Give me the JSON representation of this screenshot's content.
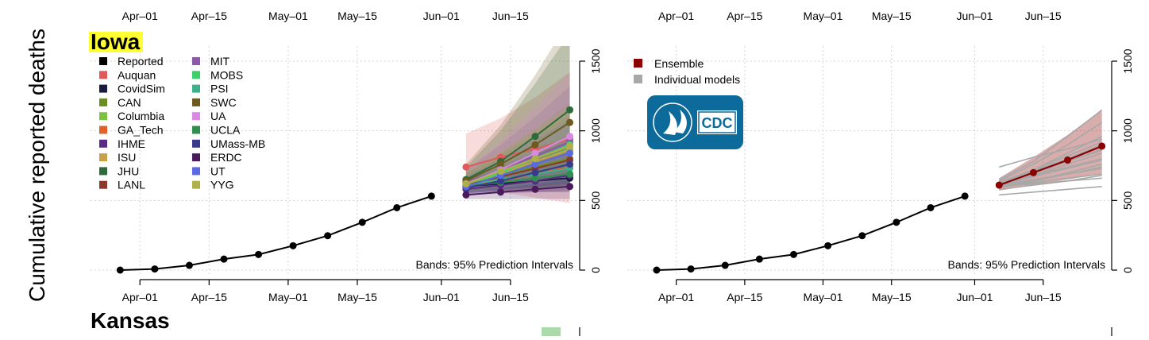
{
  "figure": {
    "ylabel": "Cumulative reported deaths",
    "states": [
      "Iowa",
      "Kansas"
    ],
    "band_note": "Bands: 95% Prediction Intervals"
  },
  "x_tick_labels": [
    "Apr–01",
    "Apr–15",
    "May–01",
    "May–15",
    "Jun–01",
    "Jun–15"
  ],
  "logo": {
    "text": "CDC",
    "bg_color": "#0d6b9c"
  },
  "chart_data": [
    {
      "type": "line",
      "panel": "iowa-individual",
      "title": "Iowa",
      "ylabel": "Cumulative reported deaths",
      "x_axis": "date",
      "xlim": [
        "2020-03-22",
        "2020-06-29"
      ],
      "ylim": [
        0,
        1500
      ],
      "y_ticks": [
        0,
        500,
        1000,
        1500
      ],
      "y_axis_side": "right",
      "grid": true,
      "legend_position": "top-left",
      "annotation": "Bands: 95% Prediction Intervals",
      "reported": {
        "name": "Reported",
        "color": "#000000",
        "x": [
          "2020-03-28",
          "2020-04-04",
          "2020-04-11",
          "2020-04-18",
          "2020-04-25",
          "2020-05-02",
          "2020-05-09",
          "2020-05-16",
          "2020-05-23",
          "2020-05-30"
        ],
        "y": [
          0,
          8,
          34,
          79,
          112,
          175,
          247,
          343,
          448,
          531
        ]
      },
      "forecast_x": [
        "2020-06-06",
        "2020-06-13",
        "2020-06-20",
        "2020-06-27"
      ],
      "series": [
        {
          "name": "Auquan",
          "color": "#e05a5a",
          "values": [
            740,
            810,
            870,
            940
          ],
          "lower": [
            600,
            560,
            520,
            480
          ],
          "upper": [
            980,
            1090,
            1240,
            1420
          ]
        },
        {
          "name": "CovidSim",
          "color": "#1a1a40",
          "values": [
            600,
            620,
            640,
            660
          ],
          "lower": [
            560,
            560,
            560,
            560
          ],
          "upper": [
            640,
            680,
            720,
            760
          ]
        },
        {
          "name": "CAN",
          "color": "#6b8e23",
          "values": [
            620,
            680,
            740,
            800
          ],
          "lower": [
            560,
            580,
            600,
            620
          ],
          "upper": [
            690,
            780,
            880,
            980
          ]
        },
        {
          "name": "Columbia",
          "color": "#7cc242",
          "values": [
            610,
            690,
            780,
            870
          ],
          "lower": [
            550,
            570,
            590,
            610
          ],
          "upper": [
            690,
            840,
            1010,
            1200
          ]
        },
        {
          "name": "GA_Tech",
          "color": "#e0622a",
          "values": [
            600,
            640,
            690,
            740
          ],
          "lower": [
            560,
            580,
            600,
            620
          ],
          "upper": [
            650,
            720,
            800,
            880
          ]
        },
        {
          "name": "IHME",
          "color": "#5b2a86",
          "values": [
            580,
            610,
            640,
            680
          ],
          "lower": [
            540,
            550,
            560,
            570
          ],
          "upper": [
            630,
            690,
            760,
            830
          ]
        },
        {
          "name": "ISU",
          "color": "#c9a04a",
          "values": [
            630,
            700,
            780,
            860
          ],
          "lower": [
            570,
            600,
            630,
            660
          ],
          "upper": [
            700,
            830,
            970,
            1110
          ]
        },
        {
          "name": "JHU",
          "color": "#2e6b3a",
          "values": [
            650,
            780,
            960,
            1150
          ],
          "lower": [
            580,
            640,
            700,
            760
          ],
          "upper": [
            740,
            1000,
            1340,
            1700
          ]
        },
        {
          "name": "LANL",
          "color": "#8b3a2a",
          "values": [
            610,
            670,
            730,
            790
          ],
          "lower": [
            570,
            600,
            630,
            660
          ],
          "upper": [
            660,
            750,
            850,
            950
          ]
        },
        {
          "name": "MIT",
          "color": "#8a5aa8",
          "values": [
            630,
            720,
            820,
            920
          ],
          "lower": [
            560,
            580,
            600,
            620
          ],
          "upper": [
            720,
            900,
            1100,
            1320
          ]
        },
        {
          "name": "MOBS",
          "color": "#3ecf6a",
          "values": [
            620,
            700,
            800,
            900
          ],
          "lower": [
            560,
            600,
            640,
            680
          ],
          "upper": [
            700,
            830,
            980,
            1140
          ]
        },
        {
          "name": "PSI",
          "color": "#3cb08a",
          "values": [
            610,
            650,
            690,
            730
          ],
          "lower": [
            570,
            590,
            610,
            630
          ],
          "upper": [
            660,
            730,
            800,
            870
          ]
        },
        {
          "name": "SWC",
          "color": "#6e5a1e",
          "values": [
            640,
            760,
            900,
            1060
          ],
          "lower": [
            560,
            600,
            640,
            680
          ],
          "upper": [
            760,
            1040,
            1400,
            1800
          ]
        },
        {
          "name": "UA",
          "color": "#d98ae0",
          "values": [
            620,
            720,
            840,
            960
          ],
          "lower": [
            550,
            570,
            590,
            610
          ],
          "upper": [
            720,
            930,
            1170,
            1420
          ]
        },
        {
          "name": "UCLA",
          "color": "#2f8f4f",
          "values": [
            600,
            630,
            660,
            690
          ],
          "lower": [
            570,
            580,
            590,
            600
          ],
          "upper": [
            640,
            690,
            740,
            790
          ]
        },
        {
          "name": "UMass-MB",
          "color": "#3a3a8c",
          "values": [
            590,
            640,
            700,
            760
          ],
          "lower": [
            550,
            570,
            590,
            610
          ],
          "upper": [
            640,
            730,
            830,
            930
          ]
        },
        {
          "name": "ERDC",
          "color": "#4a1a5a",
          "values": [
            540,
            560,
            580,
            600
          ],
          "lower": [
            510,
            510,
            510,
            510
          ],
          "upper": [
            580,
            620,
            660,
            700
          ]
        },
        {
          "name": "UT",
          "color": "#5a6ae0",
          "values": [
            600,
            680,
            760,
            840
          ],
          "lower": [
            550,
            580,
            610,
            640
          ],
          "upper": [
            670,
            800,
            940,
            1080
          ]
        },
        {
          "name": "YYG",
          "color": "#b0b04a",
          "values": [
            620,
            710,
            800,
            890
          ],
          "lower": [
            560,
            590,
            620,
            650
          ],
          "upper": [
            700,
            850,
            1010,
            1180
          ]
        }
      ]
    },
    {
      "type": "line",
      "panel": "iowa-ensemble",
      "x_axis": "date",
      "xlim": [
        "2020-03-22",
        "2020-06-29"
      ],
      "ylim": [
        0,
        1500
      ],
      "y_ticks": [
        0,
        500,
        1000,
        1500
      ],
      "y_axis_side": "right",
      "grid": true,
      "legend_position": "top-left",
      "annotation": "Bands: 95% Prediction Intervals",
      "reported": {
        "name": "Reported",
        "color": "#000000",
        "x": [
          "2020-03-28",
          "2020-04-04",
          "2020-04-11",
          "2020-04-18",
          "2020-04-25",
          "2020-05-02",
          "2020-05-09",
          "2020-05-16",
          "2020-05-23",
          "2020-05-30"
        ],
        "y": [
          0,
          8,
          34,
          79,
          112,
          175,
          247,
          343,
          448,
          531
        ]
      },
      "forecast_x": [
        "2020-06-06",
        "2020-06-13",
        "2020-06-20",
        "2020-06-27"
      ],
      "ensemble": {
        "name": "Ensemble",
        "color": "#8b0000",
        "values": [
          610,
          700,
          790,
          890
        ],
        "lower": [
          570,
          610,
          650,
          690
        ],
        "upper": [
          660,
          810,
          970,
          1150
        ]
      },
      "individual_models": {
        "name": "Individual models",
        "color": "#a8a8a8",
        "lines": [
          [
            740,
            810,
            870,
            940
          ],
          [
            600,
            620,
            640,
            660
          ],
          [
            620,
            680,
            740,
            800
          ],
          [
            610,
            690,
            780,
            870
          ],
          [
            600,
            640,
            690,
            740
          ],
          [
            580,
            610,
            640,
            680
          ],
          [
            630,
            700,
            780,
            860
          ],
          [
            650,
            780,
            960,
            1150
          ],
          [
            610,
            670,
            730,
            790
          ],
          [
            630,
            720,
            820,
            920
          ],
          [
            620,
            700,
            800,
            900
          ],
          [
            610,
            650,
            690,
            730
          ],
          [
            640,
            760,
            900,
            1060
          ],
          [
            620,
            720,
            840,
            960
          ],
          [
            600,
            630,
            660,
            690
          ],
          [
            590,
            640,
            700,
            760
          ],
          [
            540,
            560,
            580,
            600
          ],
          [
            600,
            680,
            760,
            840
          ],
          [
            620,
            710,
            800,
            890
          ]
        ]
      }
    }
  ]
}
